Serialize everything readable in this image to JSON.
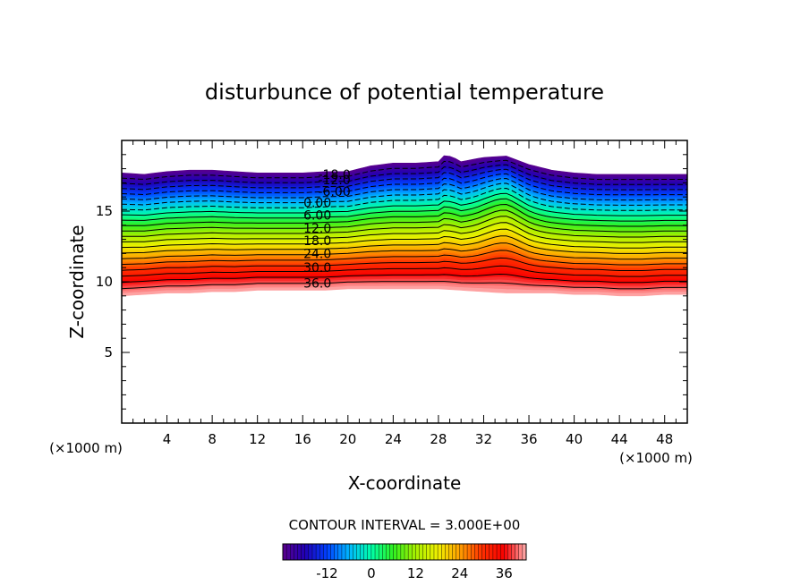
{
  "chart_data": {
    "type": "contour",
    "title": "disturbunce of potential temperature",
    "xlabel": "X-coordinate",
    "ylabel": "Z-coordinate",
    "x_unit_label": "(×1000 m)",
    "y_unit_label": "(×1000 m)",
    "xlim": [
      0,
      50
    ],
    "ylim": [
      0,
      20
    ],
    "x_ticks": [
      4,
      8,
      12,
      16,
      20,
      24,
      28,
      32,
      36,
      40,
      44,
      48
    ],
    "y_ticks": [
      5,
      10,
      15
    ],
    "contour_interval_label": "CONTOUR INTERVAL = 3.000E+00",
    "contour_interval": 3.0,
    "levels_min": -24,
    "levels_max": 42,
    "contour_labels": [
      {
        "text": "-18.0",
        "x": 18.8,
        "y": 17.6,
        "level": -18
      },
      {
        "text": "-12.0",
        "x": 18.8,
        "y": 17.2,
        "level": -12
      },
      {
        "text": "-6.00",
        "x": 18.8,
        "y": 16.4,
        "level": -6
      },
      {
        "text": "0.00",
        "x": 17.3,
        "y": 15.6,
        "level": 0
      },
      {
        "text": "6.00",
        "x": 17.3,
        "y": 14.7,
        "level": 6
      },
      {
        "text": "12.0",
        "x": 17.3,
        "y": 13.8,
        "level": 12
      },
      {
        "text": "18.0",
        "x": 17.3,
        "y": 12.9,
        "level": 18
      },
      {
        "text": "24.0",
        "x": 17.3,
        "y": 12.0,
        "level": 24
      },
      {
        "text": "30.0",
        "x": 17.3,
        "y": 11.0,
        "level": 30
      },
      {
        "text": "36.0",
        "x": 17.3,
        "y": 9.9,
        "level": 36
      }
    ],
    "colorbar": {
      "ticks": [
        "-12",
        "0",
        "12",
        "24",
        "36"
      ],
      "tick_values": [
        -12,
        0,
        12,
        24,
        36
      ],
      "min": -24,
      "max": 42
    },
    "top_boundary": [
      [
        0,
        17.7
      ],
      [
        2,
        17.6
      ],
      [
        4,
        17.8
      ],
      [
        6,
        17.9
      ],
      [
        8,
        17.9
      ],
      [
        10,
        17.8
      ],
      [
        12,
        17.7
      ],
      [
        14,
        17.7
      ],
      [
        16,
        17.7
      ],
      [
        18,
        17.8
      ],
      [
        20,
        17.8
      ],
      [
        22,
        18.2
      ],
      [
        24,
        18.4
      ],
      [
        26,
        18.4
      ],
      [
        28,
        18.5
      ],
      [
        28.6,
        19.0
      ],
      [
        29.6,
        18.7
      ],
      [
        30,
        18.5
      ],
      [
        32,
        18.8
      ],
      [
        34,
        18.9
      ],
      [
        35,
        18.6
      ],
      [
        36,
        18.3
      ],
      [
        38,
        17.9
      ],
      [
        40,
        17.7
      ],
      [
        42,
        17.6
      ],
      [
        44,
        17.6
      ],
      [
        46,
        17.6
      ],
      [
        48,
        17.6
      ],
      [
        50,
        17.6
      ]
    ],
    "bottom_boundary": [
      [
        0,
        9.0
      ],
      [
        2,
        9.1
      ],
      [
        4,
        9.2
      ],
      [
        6,
        9.2
      ],
      [
        8,
        9.3
      ],
      [
        10,
        9.3
      ],
      [
        12,
        9.4
      ],
      [
        14,
        9.4
      ],
      [
        16,
        9.4
      ],
      [
        18,
        9.4
      ],
      [
        20,
        9.5
      ],
      [
        22,
        9.5
      ],
      [
        24,
        9.5
      ],
      [
        26,
        9.5
      ],
      [
        28,
        9.5
      ],
      [
        30,
        9.4
      ],
      [
        32,
        9.3
      ],
      [
        34,
        9.2
      ],
      [
        36,
        9.2
      ],
      [
        38,
        9.2
      ],
      [
        40,
        9.1
      ],
      [
        42,
        9.1
      ],
      [
        44,
        9.0
      ],
      [
        46,
        9.0
      ],
      [
        48,
        9.1
      ],
      [
        50,
        9.1
      ]
    ]
  }
}
